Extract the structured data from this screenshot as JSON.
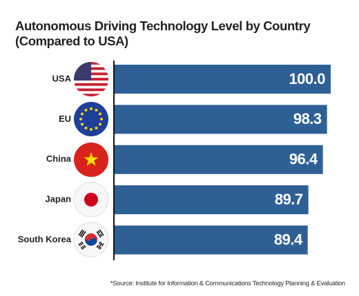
{
  "chart_data": {
    "type": "bar",
    "orientation": "horizontal",
    "title": "Autonomous Driving Technology Level by Country",
    "subtitle": "(Compared to USA)",
    "categories": [
      "USA",
      "EU",
      "China",
      "Japan",
      "South Korea"
    ],
    "values": [
      100.0,
      98.3,
      96.4,
      89.7,
      89.4
    ],
    "value_labels": [
      "100.0",
      "98.3",
      "96.4",
      "89.7",
      "89.4"
    ],
    "color": "#2e6096",
    "source": "*Source: Institute for Information & Communications Technology Planning & Evaluation"
  }
}
